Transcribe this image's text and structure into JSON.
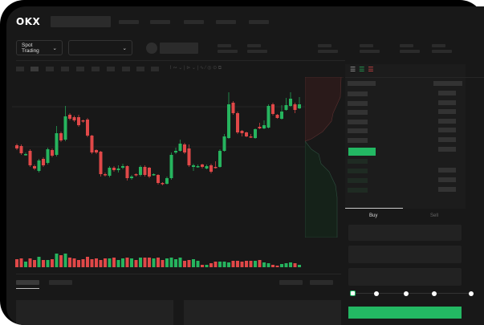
{
  "header": {
    "brand": "OKX"
  },
  "toolbar": {
    "market_select": "Spot Trading",
    "chevron": "⌄"
  },
  "trade": {
    "buy_tab": "Buy",
    "sell_tab": "Sell",
    "slider_percent": 0
  },
  "colors": {
    "up": "#26b45e",
    "down": "#e04848",
    "accent": "#23b863",
    "bg": "#181818"
  },
  "chart_data": {
    "type": "candlestick",
    "candles": [
      [
        69,
        65,
        71,
        63
      ],
      [
        68,
        59,
        70,
        57
      ],
      [
        58,
        58,
        60,
        56
      ],
      [
        62,
        44,
        64,
        42
      ],
      [
        43,
        40,
        45,
        38
      ],
      [
        37,
        50,
        52,
        35
      ],
      [
        52,
        44,
        54,
        42
      ],
      [
        47,
        64,
        66,
        45
      ],
      [
        63,
        56,
        65,
        54
      ],
      [
        57,
        84,
        93,
        55
      ],
      [
        84,
        75,
        86,
        73
      ],
      [
        76,
        105,
        118,
        74
      ],
      [
        107,
        102,
        109,
        100
      ],
      [
        104,
        100,
        106,
        98
      ],
      [
        104,
        94,
        107,
        92
      ],
      [
        100,
        99,
        101,
        97
      ],
      [
        101,
        81,
        103,
        79
      ],
      [
        81,
        60,
        82,
        58
      ],
      [
        63,
        60,
        64,
        58
      ],
      [
        61,
        33,
        62,
        30
      ],
      [
        33,
        32,
        35,
        30
      ],
      [
        31,
        41,
        43,
        29
      ],
      [
        41,
        38,
        43,
        36
      ],
      [
        38,
        40,
        44,
        35
      ],
      [
        41,
        43,
        46,
        39
      ],
      [
        43,
        28,
        44,
        25
      ],
      [
        28,
        30,
        32,
        26
      ],
      [
        33,
        32,
        34,
        30
      ],
      [
        32,
        42,
        44,
        30
      ],
      [
        42,
        32,
        44,
        30
      ],
      [
        41,
        30,
        42,
        28
      ],
      [
        33,
        33,
        34,
        31
      ],
      [
        32,
        22,
        33,
        20
      ],
      [
        22,
        21,
        23,
        19
      ],
      [
        21,
        28,
        30,
        20
      ],
      [
        28,
        57,
        60,
        26
      ],
      [
        60,
        62,
        66,
        58
      ],
      [
        62,
        71,
        76,
        61
      ],
      [
        70,
        60,
        72,
        58
      ],
      [
        65,
        44,
        70,
        42
      ],
      [
        42,
        44,
        46,
        37
      ],
      [
        43,
        43,
        45,
        41
      ],
      [
        45,
        42,
        46,
        40
      ],
      [
        40,
        43,
        45,
        39
      ],
      [
        44,
        36,
        46,
        34
      ],
      [
        42,
        41,
        49,
        40
      ],
      [
        42,
        62,
        64,
        41
      ],
      [
        62,
        80,
        83,
        61
      ],
      [
        78,
        120,
        135,
        77
      ],
      [
        122,
        109,
        124,
        107
      ],
      [
        109,
        85,
        111,
        83
      ],
      [
        87,
        84,
        88,
        80
      ],
      [
        85,
        80,
        86,
        79
      ],
      [
        80,
        79,
        83,
        78
      ],
      [
        78,
        89,
        90,
        77
      ],
      [
        92,
        90,
        97,
        89
      ],
      [
        90,
        94,
        100,
        89
      ],
      [
        91,
        118,
        120,
        90
      ],
      [
        120,
        108,
        122,
        106
      ],
      [
        107,
        103,
        108,
        102
      ],
      [
        102,
        111,
        119,
        101
      ],
      [
        113,
        119,
        128,
        112
      ],
      [
        118,
        127,
        135,
        117
      ],
      [
        120,
        113,
        122,
        109
      ],
      [
        115,
        120,
        129,
        114
      ]
    ],
    "volume": [
      10,
      11,
      7,
      11,
      9,
      13,
      9,
      9,
      10,
      17,
      15,
      17,
      12,
      11,
      9,
      10,
      13,
      10,
      11,
      9,
      11,
      11,
      12,
      9,
      11,
      12,
      11,
      9,
      12,
      12,
      12,
      11,
      12,
      9,
      11,
      12,
      10,
      12,
      8,
      9,
      10,
      8,
      3,
      3,
      5,
      7,
      7,
      7,
      6,
      8,
      8,
      7,
      8,
      8,
      8,
      9,
      6,
      5,
      3,
      2,
      4,
      5,
      6,
      5,
      3
    ]
  }
}
